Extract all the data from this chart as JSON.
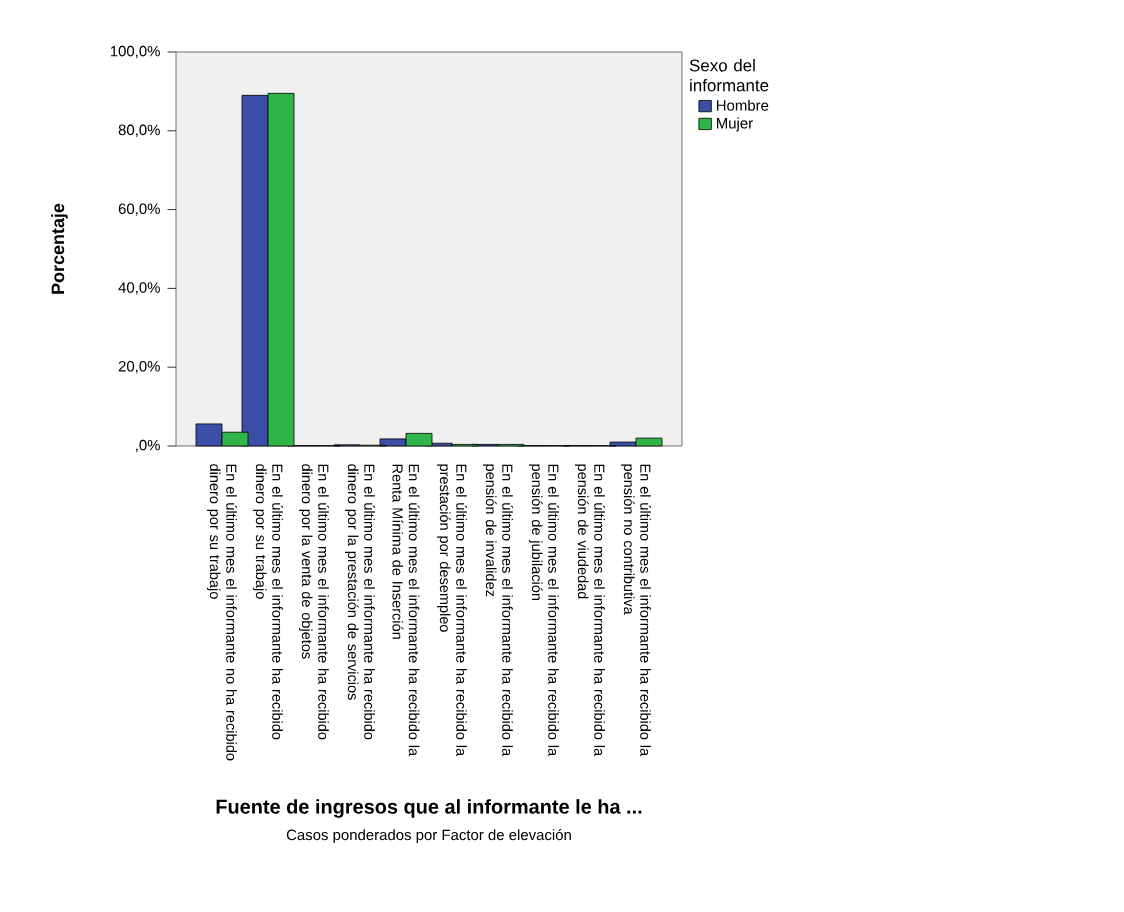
{
  "chart_data": {
    "type": "bar",
    "xlabel": "Fuente de ingresos que al informante le ha ...",
    "ylabel": "Porcentaje",
    "legend_title": "Sexo del informante",
    "categories": [
      "En el último mes el informante no ha recibido dinero por su trabajo",
      "En el último mes el informante ha recibido dinero por su trabajo",
      "En el último mes el informante ha recibido dinero por la venta de objetos",
      "En el último mes el informante ha recibido dinero por la prestación de servicios",
      "En el último mes el informante ha recibido la Renta Mínima de Inserción",
      "En el último mes el informante ha recibido la prestación por desempleo",
      "En el último mes el informante ha recibido la pensión de invalidez",
      "En el último mes el informante ha recibido la pensión de jubilación",
      "En el último mes el informante ha recibido la pensión de viudedad",
      "En el último mes el informante ha recibido la pensión no contributiva"
    ],
    "series": [
      {
        "name": "Hombre",
        "color": "#3b4fa8",
        "values": [
          5.6,
          89,
          0.1,
          0.3,
          1.8,
          0.7,
          0.4,
          0.1,
          0.1,
          1.0
        ]
      },
      {
        "name": "Mujer",
        "color": "#2fb548",
        "values": [
          3.5,
          89.5,
          0.1,
          0.2,
          3.2,
          0.4,
          0.4,
          0.1,
          0.1,
          2.0
        ]
      }
    ],
    "ylim": [
      0,
      100
    ],
    "yticks": [
      {
        "value": 0,
        "label": ",0%"
      },
      {
        "value": 20,
        "label": "20,0%"
      },
      {
        "value": 40,
        "label": "40,0%"
      },
      {
        "value": 60,
        "label": "60,0%"
      },
      {
        "value": 80,
        "label": "80,0%"
      },
      {
        "value": 100,
        "label": "100,0%"
      }
    ],
    "grid": false,
    "legend": "top right",
    "annotations": [
      "Casos ponderados por Factor de elevación"
    ]
  }
}
